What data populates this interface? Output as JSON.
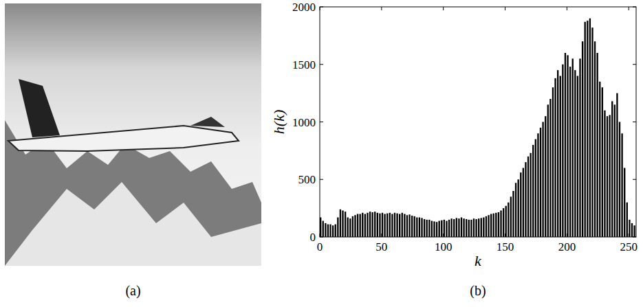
{
  "image_panel": {
    "caption": "(a)"
  },
  "chart_data": {
    "type": "histogram",
    "caption": "(b)",
    "x_label": "k",
    "y_label": "h(k)",
    "bins": [
      0,
      2,
      4,
      6,
      8,
      10,
      12,
      14,
      16,
      18,
      20,
      22,
      24,
      26,
      28,
      30,
      32,
      34,
      36,
      38,
      40,
      42,
      44,
      46,
      48,
      50,
      52,
      54,
      56,
      58,
      60,
      62,
      64,
      66,
      68,
      70,
      72,
      74,
      76,
      78,
      80,
      82,
      84,
      86,
      88,
      90,
      92,
      94,
      96,
      98,
      100,
      102,
      104,
      106,
      108,
      110,
      112,
      114,
      116,
      118,
      120,
      122,
      124,
      126,
      128,
      130,
      132,
      134,
      136,
      138,
      140,
      142,
      144,
      146,
      148,
      150,
      152,
      154,
      156,
      158,
      160,
      162,
      164,
      166,
      168,
      170,
      172,
      174,
      176,
      178,
      180,
      182,
      184,
      186,
      188,
      190,
      192,
      194,
      196,
      198,
      200,
      202,
      204,
      206,
      208,
      210,
      212,
      214,
      216,
      218,
      220,
      222,
      224,
      226,
      228,
      230,
      232,
      234,
      236,
      238,
      240,
      242,
      244,
      246,
      248,
      250,
      252,
      254,
      256
    ],
    "values": [
      170,
      140,
      120,
      110,
      110,
      100,
      110,
      170,
      240,
      230,
      220,
      170,
      160,
      180,
      190,
      200,
      200,
      210,
      200,
      210,
      220,
      215,
      220,
      210,
      205,
      210,
      200,
      205,
      210,
      200,
      210,
      205,
      200,
      210,
      200,
      190,
      195,
      185,
      180,
      170,
      170,
      165,
      155,
      150,
      150,
      140,
      135,
      130,
      140,
      145,
      150,
      140,
      150,
      160,
      155,
      165,
      160,
      170,
      160,
      155,
      150,
      150,
      160,
      155,
      160,
      165,
      170,
      180,
      190,
      200,
      205,
      210,
      215,
      230,
      250,
      270,
      300,
      350,
      400,
      470,
      500,
      560,
      600,
      650,
      700,
      730,
      800,
      850,
      900,
      950,
      1000,
      1050,
      1150,
      1200,
      1300,
      1380,
      1450,
      1400,
      1500,
      1600,
      1580,
      1480,
      1550,
      1450,
      1400,
      1550,
      1700,
      1870,
      1880,
      1900,
      1820,
      1700,
      1600,
      1350,
      1300,
      1100,
      1050,
      1060,
      1180,
      1150,
      1250,
      1000,
      900,
      600,
      300,
      150,
      120,
      100
    ],
    "color": "#000000",
    "xlim": [
      0,
      256
    ],
    "xticks": [
      0,
      50,
      100,
      150,
      200,
      250
    ],
    "ylim": [
      0,
      2000
    ],
    "yticks": [
      0,
      500,
      1000,
      1500,
      2000
    ]
  }
}
